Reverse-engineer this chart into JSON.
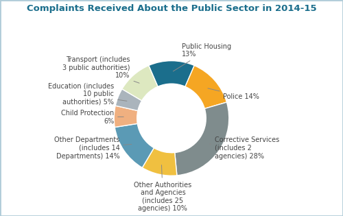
{
  "title": "Complaints Received About the Public Sector in 2014-15",
  "slices": [
    {
      "label": "Public Housing\n13%",
      "value": 13,
      "color": "#1b6e8c"
    },
    {
      "label": "Police 14%",
      "value": 14,
      "color": "#f5a623"
    },
    {
      "label": "Corrective Services\n(includes 2\nagencies) 28%",
      "value": 28,
      "color": "#7f8c8d"
    },
    {
      "label": "Other Authorities\nand Agencies\n(includes 25\nagencies) 10%",
      "value": 10,
      "color": "#f0c040"
    },
    {
      "label": "Other Departments\n(includes 14\nDepartments) 14%",
      "value": 14,
      "color": "#5b9ab5"
    },
    {
      "label": "Child Protection\n6%",
      "value": 6,
      "color": "#f0b080"
    },
    {
      "label": "Education (includes\n10 public\nauthorities) 5%",
      "value": 5,
      "color": "#aab4bc"
    },
    {
      "label": "Transport (includes\n3 public authorities)\n10%",
      "value": 10,
      "color": "#dde8c0"
    }
  ],
  "background_color": "#ffffff",
  "border_color": "#b0ccd8",
  "title_color": "#1b6e8c",
  "title_fontsize": 9.5,
  "label_fontsize": 7.0
}
